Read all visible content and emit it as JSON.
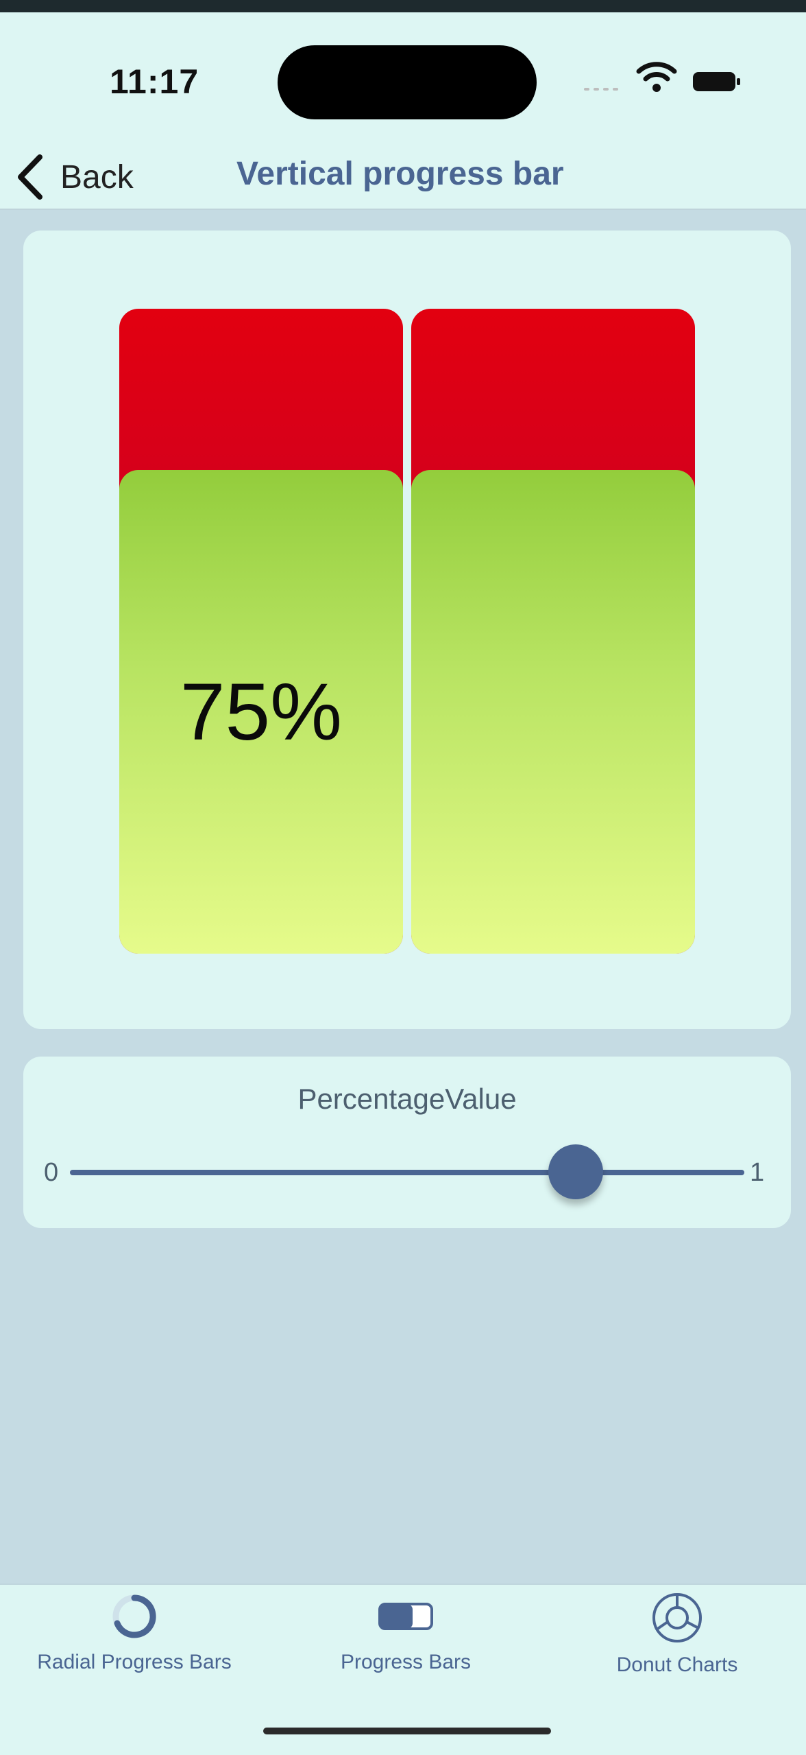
{
  "status_bar": {
    "time": "11:17"
  },
  "nav": {
    "back_label": "Back",
    "title": "Vertical progress bar"
  },
  "progress": {
    "value": 0.75,
    "label": "75%"
  },
  "slider": {
    "title": "PercentageValue",
    "min_label": "0",
    "max_label": "1",
    "value": 0.75
  },
  "tabs": [
    {
      "label": "Radial Progress Bars",
      "icon": "radial-progress-icon"
    },
    {
      "label": "Progress Bars",
      "icon": "progress-bar-icon"
    },
    {
      "label": "Donut Charts",
      "icon": "donut-chart-icon"
    }
  ],
  "colors": {
    "accent": "#4a6592",
    "track_top": "#e20010",
    "track_bottom": "#b30039",
    "fill_top": "#93cd3c",
    "fill_bottom": "#e6fb8b",
    "background": "#c5dbe3",
    "surface": "#ddf6f3"
  }
}
